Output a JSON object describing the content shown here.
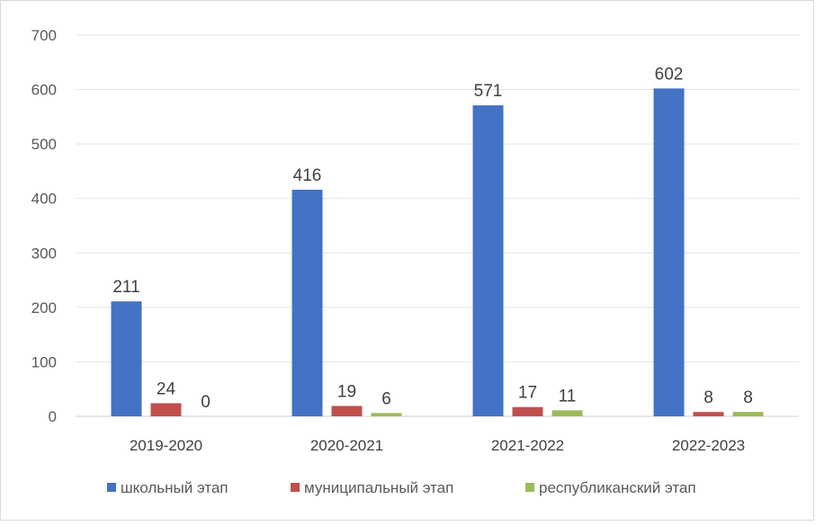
{
  "chart_data": {
    "type": "bar",
    "categories": [
      "2019-2020",
      "2020-2021",
      "2021-2022",
      "2022-2023"
    ],
    "series": [
      {
        "name": "школьный этап",
        "color": "#4472c4",
        "values": [
          211,
          416,
          571,
          602
        ]
      },
      {
        "name": "муниципальный этап",
        "color": "#c0504d",
        "values": [
          24,
          19,
          17,
          8
        ]
      },
      {
        "name": "республиканский этап",
        "color": "#9bbb59",
        "values": [
          0,
          6,
          11,
          8
        ]
      }
    ],
    "ylim": [
      0,
      700
    ],
    "yticks": [
      0,
      100,
      200,
      300,
      400,
      500,
      600,
      700
    ],
    "grid": true,
    "legend_position": "bottom",
    "data_labels": true
  }
}
